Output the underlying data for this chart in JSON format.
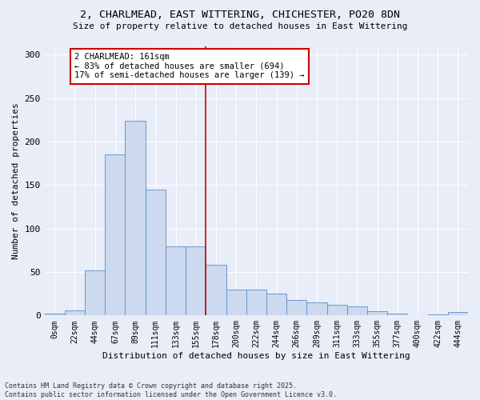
{
  "title_line1": "2, CHARLMEAD, EAST WITTERING, CHICHESTER, PO20 8DN",
  "title_line2": "Size of property relative to detached houses in East Wittering",
  "xlabel": "Distribution of detached houses by size in East Wittering",
  "ylabel": "Number of detached properties",
  "footer_line1": "Contains HM Land Registry data © Crown copyright and database right 2025.",
  "footer_line2": "Contains public sector information licensed under the Open Government Licence v3.0.",
  "bin_labels": [
    "0sqm",
    "22sqm",
    "44sqm",
    "67sqm",
    "89sqm",
    "111sqm",
    "133sqm",
    "155sqm",
    "178sqm",
    "200sqm",
    "222sqm",
    "244sqm",
    "266sqm",
    "289sqm",
    "311sqm",
    "333sqm",
    "355sqm",
    "377sqm",
    "400sqm",
    "422sqm",
    "444sqm"
  ],
  "bar_values": [
    2,
    6,
    52,
    185,
    224,
    145,
    79,
    79,
    58,
    30,
    30,
    25,
    18,
    15,
    12,
    10,
    5,
    2,
    0,
    1,
    4
  ],
  "bar_color": "#ccd9ee",
  "bar_edge_color": "#5b8cc8",
  "bg_color": "#e8edf8",
  "grid_color": "#ffffff",
  "vline_x_index": 7.5,
  "vline_color": "#cc0000",
  "annotation_text": "2 CHARLMEAD: 161sqm\n← 83% of detached houses are smaller (694)\n17% of semi-detached houses are larger (139) →",
  "annotation_box_color": "#ffffff",
  "annotation_box_edge_color": "#cc0000",
  "ylim": [
    0,
    310
  ],
  "yticks": [
    0,
    50,
    100,
    150,
    200,
    250,
    300
  ],
  "title_fontsize": 9.5,
  "subtitle_fontsize": 8,
  "ylabel_fontsize": 8,
  "xlabel_fontsize": 8,
  "tick_fontsize": 7,
  "annot_fontsize": 7.5,
  "footer_fontsize": 6
}
